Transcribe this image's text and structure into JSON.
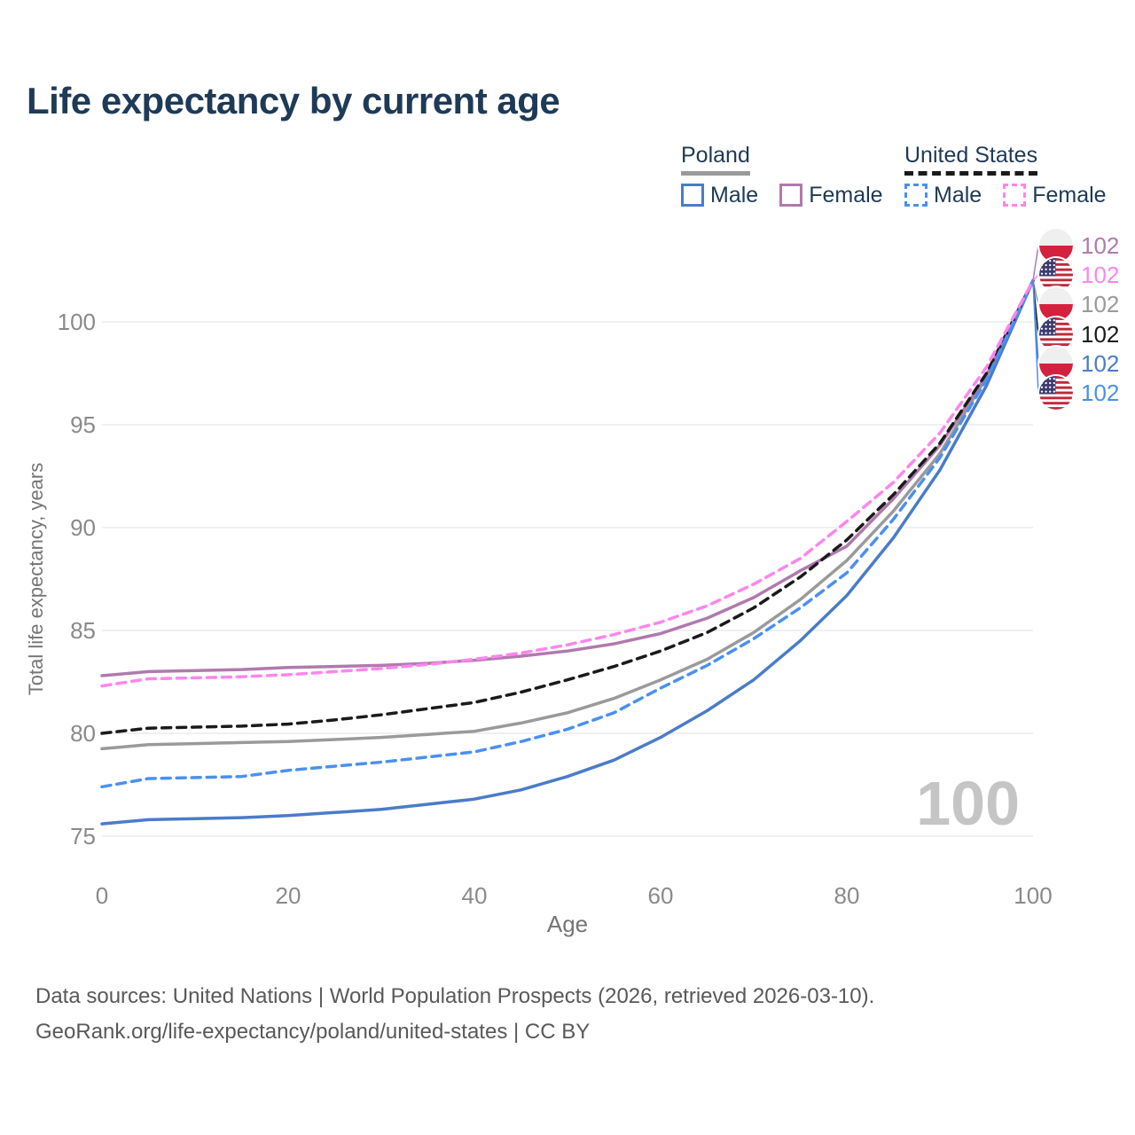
{
  "title": "Life expectancy by current age",
  "watermark": "100",
  "legend": {
    "groups": [
      {
        "label": "Poland",
        "underline_color": "#9a9a9a",
        "underline_style": "solid",
        "items": [
          {
            "label": "Male",
            "color": "#4a7cc8",
            "style": "solid"
          },
          {
            "label": "Female",
            "color": "#b07aad",
            "style": "solid"
          }
        ]
      },
      {
        "label": "United States",
        "underline_color": "#1a1a1a",
        "underline_style": "dashed",
        "items": [
          {
            "label": "Male",
            "color": "#4a90f0",
            "style": "dashed"
          },
          {
            "label": "Female",
            "color": "#ff85ee",
            "style": "dashed"
          }
        ]
      }
    ]
  },
  "footer": {
    "line1": "Data sources: United Nations | World Population Prospects (2026, retrieved 2026-03-10).",
    "line2": "GeoRank.org/life-expectancy/poland/united-states | CC BY"
  },
  "chart_data": {
    "type": "line",
    "title": "Life expectancy by current age",
    "xlabel": "Age",
    "ylabel": "Total life expectancy, years",
    "xlim": [
      0,
      100
    ],
    "ylim": [
      74,
      103
    ],
    "xticks": [
      0,
      20,
      40,
      60,
      80,
      100
    ],
    "yticks": [
      75,
      80,
      85,
      90,
      95,
      100
    ],
    "grid": "horizontal-only",
    "legend_position": "top-right",
    "x": [
      0,
      5,
      10,
      15,
      20,
      25,
      30,
      35,
      40,
      45,
      50,
      55,
      60,
      65,
      70,
      75,
      80,
      85,
      90,
      95,
      100
    ],
    "series": [
      {
        "name": "Poland Both sexes",
        "country": "Poland",
        "sex": "Both",
        "color": "#9a9a9a",
        "dashed": false,
        "flag": "pl",
        "label_row": 2,
        "end_value": "102",
        "values": [
          79.25,
          79.45,
          79.5,
          79.55,
          79.6,
          79.7,
          79.8,
          79.95,
          80.1,
          80.5,
          81.0,
          81.7,
          82.6,
          83.6,
          84.9,
          86.5,
          88.4,
          90.8,
          93.6,
          97.3,
          102
        ]
      },
      {
        "name": "Poland Female",
        "country": "Poland",
        "sex": "Female",
        "color": "#b07aad",
        "dashed": false,
        "flag": "pl",
        "label_row": 0,
        "end_value": "102",
        "values": [
          82.8,
          83.0,
          83.05,
          83.1,
          83.2,
          83.25,
          83.3,
          83.4,
          83.55,
          83.75,
          84.0,
          84.35,
          84.85,
          85.6,
          86.6,
          87.9,
          89.1,
          91.4,
          94.0,
          97.4,
          102
        ]
      },
      {
        "name": "Poland Male",
        "country": "Poland",
        "sex": "Male",
        "color": "#4a7cc8",
        "dashed": false,
        "flag": "pl",
        "label_row": 4,
        "end_value": "102",
        "values": [
          75.6,
          75.8,
          75.85,
          75.9,
          76.0,
          76.15,
          76.3,
          76.55,
          76.8,
          77.25,
          77.9,
          78.7,
          79.8,
          81.1,
          82.6,
          84.5,
          86.7,
          89.5,
          92.8,
          96.9,
          102
        ]
      },
      {
        "name": "United States Both sexes",
        "country": "United States",
        "sex": "Both",
        "color": "#1a1a1a",
        "dashed": true,
        "flag": "us",
        "label_row": 3,
        "end_value": "102",
        "values": [
          80.0,
          80.25,
          80.3,
          80.35,
          80.45,
          80.65,
          80.9,
          81.2,
          81.5,
          82.0,
          82.6,
          83.25,
          84.0,
          84.9,
          86.1,
          87.6,
          89.4,
          91.6,
          94.1,
          97.5,
          102
        ]
      },
      {
        "name": "United States Male",
        "country": "United States",
        "sex": "Male",
        "color": "#4a90f0",
        "dashed": true,
        "flag": "us",
        "label_row": 5,
        "end_value": "102",
        "values": [
          77.4,
          77.8,
          77.85,
          77.9,
          78.2,
          78.4,
          78.6,
          78.85,
          79.1,
          79.6,
          80.2,
          81.0,
          82.2,
          83.3,
          84.6,
          86.1,
          87.8,
          90.4,
          93.4,
          97.2,
          102
        ]
      },
      {
        "name": "United States Female",
        "country": "United States",
        "sex": "Female",
        "color": "#ff85ee",
        "dashed": true,
        "flag": "us",
        "label_row": 1,
        "end_value": "102",
        "values": [
          82.3,
          82.65,
          82.7,
          82.75,
          82.85,
          83.0,
          83.15,
          83.35,
          83.6,
          83.9,
          84.3,
          84.8,
          85.4,
          86.2,
          87.25,
          88.5,
          90.3,
          92.2,
          94.6,
          97.8,
          102
        ]
      }
    ]
  }
}
